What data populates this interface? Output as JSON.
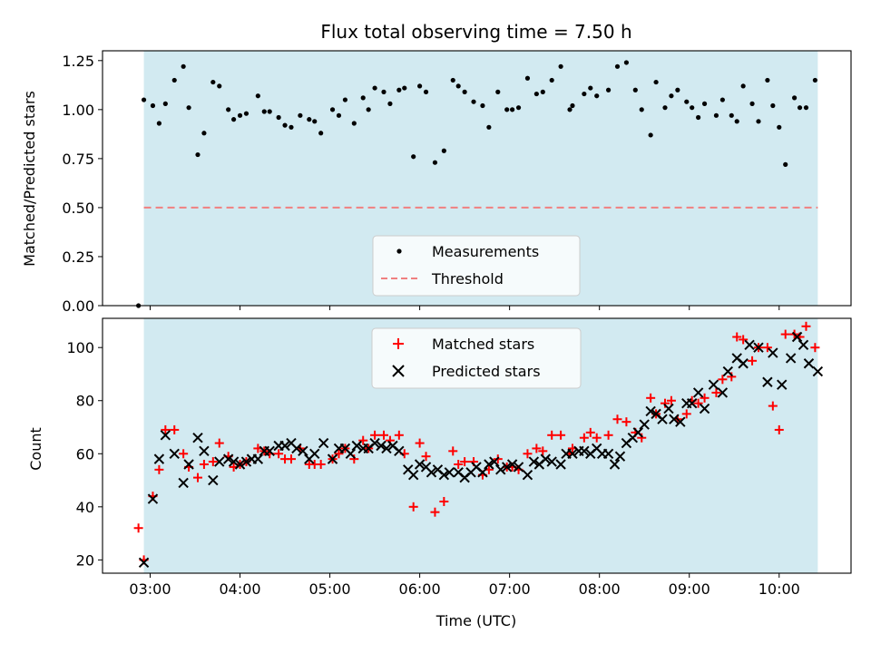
{
  "chart_data": [
    {
      "type": "scatter",
      "title": "Flux total observing time = 7.50 h",
      "ylabel": "Matched/Predicted stars",
      "xlabel": "",
      "ylim": [
        0,
        1.3
      ],
      "yticks": [
        "0.00",
        "0.25",
        "0.50",
        "0.75",
        "1.00",
        "1.25"
      ],
      "xlim_hours": [
        2.47,
        10.8
      ],
      "xticks": [
        "03:00",
        "04:00",
        "05:00",
        "06:00",
        "07:00",
        "08:00",
        "09:00",
        "10:00"
      ],
      "xtick_labels_shown": false,
      "shaded_span_hours": [
        2.93,
        10.43
      ],
      "shade_color": "#add8e6",
      "legend_position": "lower center",
      "series": [
        {
          "name": "Measurements",
          "marker": "dot",
          "color": "#000000",
          "x_hours": [
            2.87,
            2.93,
            3.03,
            3.1,
            3.17,
            3.27,
            3.37,
            3.43,
            3.53,
            3.6,
            3.7,
            3.77,
            3.87,
            3.93,
            4.0,
            4.07,
            4.2,
            4.27,
            4.33,
            4.43,
            4.5,
            4.57,
            4.67,
            4.77,
            4.83,
            4.9,
            5.03,
            5.1,
            5.17,
            5.27,
            5.37,
            5.43,
            5.5,
            5.6,
            5.67,
            5.77,
            5.83,
            5.93,
            6.0,
            6.07,
            6.17,
            6.27,
            6.37,
            6.43,
            6.5,
            6.6,
            6.7,
            6.77,
            6.87,
            6.97,
            7.03,
            7.1,
            7.2,
            7.3,
            7.37,
            7.47,
            7.57,
            7.67,
            7.7,
            7.83,
            7.9,
            7.97,
            8.1,
            8.2,
            8.3,
            8.4,
            8.47,
            8.57,
            8.63,
            8.73,
            8.8,
            8.87,
            8.97,
            9.03,
            9.1,
            9.17,
            9.3,
            9.37,
            9.47,
            9.53,
            9.6,
            9.7,
            9.77,
            9.87,
            9.93,
            10.0,
            10.07,
            10.17,
            10.23,
            10.3,
            10.4
          ],
          "y": [
            0.0,
            1.05,
            1.02,
            0.93,
            1.03,
            1.15,
            1.22,
            1.01,
            0.77,
            0.88,
            1.14,
            1.12,
            1.0,
            0.95,
            0.97,
            0.98,
            1.07,
            0.99,
            0.99,
            0.96,
            0.92,
            0.91,
            0.97,
            0.95,
            0.94,
            0.88,
            1.0,
            0.97,
            1.05,
            0.93,
            1.06,
            1.0,
            1.11,
            1.09,
            1.03,
            1.1,
            1.11,
            0.76,
            1.12,
            1.09,
            0.73,
            0.79,
            1.15,
            1.12,
            1.09,
            1.04,
            1.02,
            0.91,
            1.09,
            1.0,
            1.0,
            1.01,
            1.16,
            1.08,
            1.09,
            1.15,
            1.22,
            1.0,
            1.02,
            1.08,
            1.11,
            1.07,
            1.1,
            1.22,
            1.24,
            1.1,
            1.0,
            0.87,
            1.14,
            1.01,
            1.07,
            1.1,
            1.04,
            1.01,
            0.96,
            1.03,
            0.97,
            1.05,
            0.97,
            0.94,
            1.12,
            1.03,
            0.94,
            1.15,
            1.02,
            0.91,
            0.72,
            1.06,
            1.01,
            1.01,
            1.15
          ]
        },
        {
          "name": "Threshold",
          "line_style": "dashed",
          "color": "#f08080",
          "x_hours": [
            2.93,
            10.43
          ],
          "y": [
            0.5,
            0.5
          ]
        }
      ]
    },
    {
      "type": "scatter",
      "title": "",
      "xlabel": "Time (UTC)",
      "ylabel": "Count",
      "ylim": [
        15,
        111
      ],
      "yticks": [
        "20",
        "40",
        "60",
        "80",
        "100"
      ],
      "xlim_hours": [
        2.47,
        10.8
      ],
      "xticks": [
        "03:00",
        "04:00",
        "05:00",
        "06:00",
        "07:00",
        "08:00",
        "09:00",
        "10:00"
      ],
      "shaded_span_hours": [
        2.93,
        10.43
      ],
      "shade_color": "#add8e6",
      "legend_position": "upper center",
      "series": [
        {
          "name": "Matched stars",
          "marker": "plus",
          "color": "#ff0000",
          "x_hours": [
            2.87,
            2.93,
            3.03,
            3.1,
            3.17,
            3.27,
            3.37,
            3.43,
            3.53,
            3.6,
            3.7,
            3.77,
            3.87,
            3.93,
            4.0,
            4.07,
            4.2,
            4.27,
            4.33,
            4.43,
            4.5,
            4.57,
            4.67,
            4.77,
            4.83,
            4.9,
            5.03,
            5.1,
            5.17,
            5.27,
            5.37,
            5.43,
            5.5,
            5.6,
            5.67,
            5.77,
            5.83,
            5.93,
            6.0,
            6.07,
            6.17,
            6.27,
            6.37,
            6.43,
            6.5,
            6.6,
            6.7,
            6.77,
            6.87,
            6.97,
            7.03,
            7.1,
            7.2,
            7.3,
            7.37,
            7.47,
            7.57,
            7.67,
            7.7,
            7.83,
            7.9,
            7.97,
            8.1,
            8.2,
            8.3,
            8.4,
            8.47,
            8.57,
            8.63,
            8.73,
            8.8,
            8.87,
            8.97,
            9.03,
            9.1,
            9.17,
            9.3,
            9.37,
            9.47,
            9.53,
            9.6,
            9.7,
            9.77,
            9.87,
            9.93,
            10.0,
            10.07,
            10.17,
            10.23,
            10.3,
            10.4
          ],
          "y": [
            32,
            20,
            44,
            54,
            69,
            69,
            60,
            55,
            51,
            56,
            57,
            64,
            59,
            55,
            56,
            57,
            62,
            61,
            60,
            60,
            58,
            58,
            62,
            56,
            56,
            56,
            58,
            60,
            62,
            58,
            65,
            62,
            67,
            67,
            65,
            67,
            60,
            40,
            64,
            59,
            38,
            42,
            61,
            56,
            57,
            57,
            52,
            54,
            58,
            55,
            55,
            54,
            60,
            62,
            61,
            67,
            67,
            60,
            62,
            66,
            68,
            66,
            67,
            73,
            72,
            68,
            66,
            81,
            75,
            79,
            80,
            73,
            75,
            80,
            79,
            81,
            83,
            88,
            89,
            104,
            103,
            95,
            100,
            100,
            78,
            69,
            105,
            105,
            104,
            108,
            100
          ]
        },
        {
          "name": "Predicted stars",
          "marker": "x",
          "color": "#000000",
          "x_hours": [
            2.93,
            3.03,
            3.1,
            3.17,
            3.27,
            3.37,
            3.43,
            3.53,
            3.6,
            3.7,
            3.77,
            3.87,
            3.93,
            4.0,
            4.07,
            4.13,
            4.2,
            4.27,
            4.33,
            4.43,
            4.5,
            4.57,
            4.63,
            4.7,
            4.77,
            4.83,
            4.93,
            5.03,
            5.1,
            5.17,
            5.23,
            5.3,
            5.37,
            5.43,
            5.5,
            5.57,
            5.63,
            5.7,
            5.77,
            5.87,
            5.93,
            6.0,
            6.07,
            6.13,
            6.2,
            6.27,
            6.33,
            6.43,
            6.5,
            6.57,
            6.63,
            6.7,
            6.77,
            6.83,
            6.9,
            6.97,
            7.03,
            7.1,
            7.2,
            7.27,
            7.33,
            7.4,
            7.47,
            7.57,
            7.63,
            7.7,
            7.77,
            7.83,
            7.9,
            7.97,
            8.03,
            8.1,
            8.17,
            8.23,
            8.3,
            8.37,
            8.43,
            8.5,
            8.57,
            8.63,
            8.7,
            8.77,
            8.83,
            8.9,
            8.97,
            9.03,
            9.1,
            9.17,
            9.27,
            9.37,
            9.43,
            9.53,
            9.6,
            9.67,
            9.77,
            9.87,
            9.93,
            10.03,
            10.13,
            10.2,
            10.27,
            10.33,
            10.43
          ],
          "y": [
            19,
            43,
            58,
            67,
            60,
            49,
            56,
            66,
            61,
            50,
            57,
            58,
            57,
            56,
            57,
            58,
            58,
            61,
            61,
            63,
            63,
            64,
            62,
            61,
            58,
            60,
            64,
            58,
            62,
            62,
            60,
            63,
            62,
            62,
            64,
            63,
            62,
            63,
            61,
            54,
            52,
            56,
            55,
            53,
            54,
            52,
            53,
            53,
            51,
            53,
            55,
            53,
            56,
            57,
            54,
            55,
            56,
            55,
            52,
            57,
            56,
            58,
            57,
            56,
            60,
            60,
            61,
            61,
            60,
            62,
            60,
            60,
            56,
            59,
            64,
            66,
            68,
            71,
            76,
            75,
            73,
            77,
            73,
            72,
            79,
            79,
            83,
            77,
            86,
            83,
            91,
            96,
            94,
            101,
            100,
            87,
            98,
            86,
            96,
            104,
            101,
            94,
            91
          ]
        }
      ]
    }
  ]
}
